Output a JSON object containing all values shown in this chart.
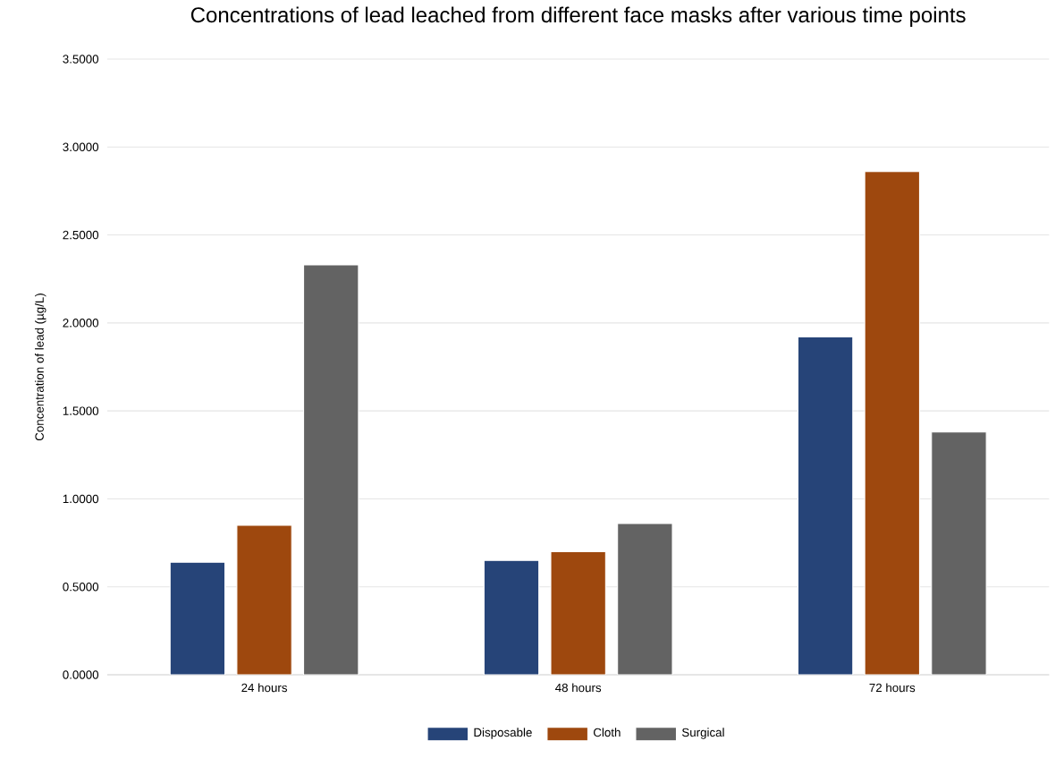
{
  "chart_data": {
    "type": "bar",
    "title": "Concentrations of lead leached from different face masks after various time points",
    "ylabel": "Concentration of lead (µg/L)",
    "categories": [
      "24 hours",
      "48 hours",
      "72 hours"
    ],
    "series": [
      {
        "name": "Disposable",
        "color": "#264478",
        "values": [
          0.64,
          0.65,
          1.92
        ]
      },
      {
        "name": "Cloth",
        "color": "#9e480e",
        "values": [
          0.85,
          0.7,
          2.86
        ]
      },
      {
        "name": "Surgical",
        "color": "#636363",
        "values": [
          2.33,
          0.86,
          1.38
        ]
      }
    ],
    "ylim": [
      0,
      3.5
    ],
    "yticks": [
      {
        "value": 0,
        "label": "0.0000"
      },
      {
        "value": 0.5,
        "label": "0.5000"
      },
      {
        "value": 1,
        "label": "1.0000"
      },
      {
        "value": 1.5,
        "label": "1.5000"
      },
      {
        "value": 2,
        "label": "2.0000"
      },
      {
        "value": 2.5,
        "label": "2.5000"
      },
      {
        "value": 3,
        "label": "3.0000"
      },
      {
        "value": 3.5,
        "label": "3.5000"
      }
    ],
    "grid": "y",
    "legend": "bottom"
  }
}
